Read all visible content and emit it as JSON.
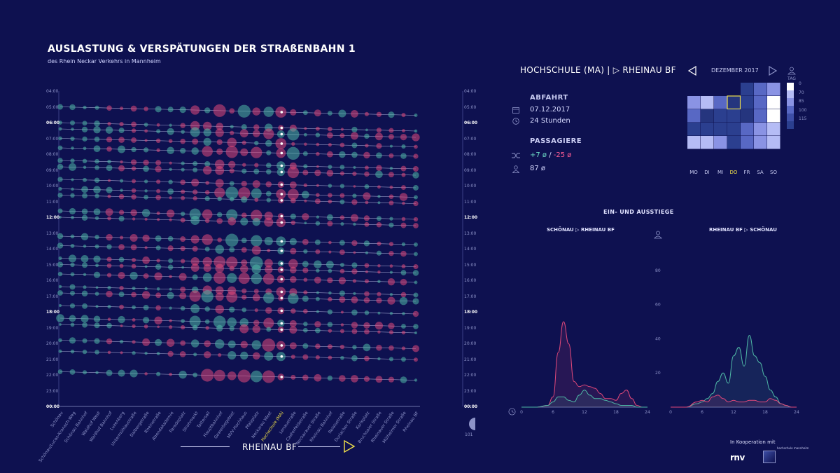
{
  "header": {
    "title": "AUSLASTUNG & VERSPÄTUNGEN DER STRAßENBAHN 1",
    "subtitle": "des Rhein Neckar Verkehrs in Mannheim"
  },
  "timeline": {
    "times": [
      "05:00",
      "06:00",
      "07:00",
      "08:00",
      "09:00",
      "10:00",
      "11:00",
      "12:00",
      "13:00",
      "14:00",
      "15:00",
      "16:00",
      "17:00",
      "18:00",
      "19:00",
      "20:00",
      "21:00",
      "22:00",
      "23:00",
      "00:00"
    ],
    "top_tick": "04:00",
    "bold_times": [
      "06:00",
      "12:00",
      "18:00",
      "00:00"
    ],
    "stops": [
      "Schönau",
      "Schönau/Lucas-Kranach-Weg",
      "Schönau Bahnhof",
      "Waldhof West",
      "Waldhof Bahnhof",
      "Luzenberg",
      "Untermühlaustraße",
      "Dalbergstraße",
      "Rheinstraße",
      "Abendakademie",
      "Paradeplatz",
      "Strohmarkt",
      "Tattersall",
      "Hauptbahnhof",
      "Gewerbegebiet",
      "MVV-Hochhaus",
      "Pfalzplatz",
      "Neckarau West",
      "Hochschule (MA)",
      "Lenaustraße",
      "Casterfeldstraße",
      "Neckarauer Straße",
      "Rheinau Bahnhof",
      "Relaisstraße",
      "Durlacher Straße",
      "Karlsplatz",
      "Bruchsaler Straße",
      "Rheinauer Straße",
      "Mülheimer Straße",
      "Rheinau BF"
    ],
    "highlight_stop": "Hochschule (MA)",
    "direction_label": "RHEINAU BF",
    "corner_value": "101",
    "colors": {
      "teal": "#4fb8a6",
      "pink": "#e0487a",
      "line": "#c9ccf2",
      "highlight": "#f0e04a"
    }
  },
  "route": {
    "title": "HOCHSCHULE (MA) | ▷ RHEINAU BF"
  },
  "abfahrt": {
    "heading": "ABFAHRT",
    "date": "07.12.2017",
    "duration": "24 Stunden"
  },
  "passagiere": {
    "heading": "PASSAGIERE",
    "plus": "+7 ø",
    "separator": "/",
    "minus": "-25 ø",
    "count": "87 ø"
  },
  "calendar": {
    "month": "DEZEMBER 2017",
    "days": [
      "MO",
      "DI",
      "MI",
      "DO",
      "FR",
      "SA",
      "SO"
    ],
    "today": "DO",
    "cells": [
      [
        null,
        null,
        null,
        null,
        "#2b3f8f",
        "#5868c4",
        "#8a93e4"
      ],
      [
        "#8a93e4",
        "#b5bcf5",
        "#5868c4",
        "#25357e",
        "#2b3f8f",
        "#5868c4",
        "#ffffff"
      ],
      [
        "#5868c4",
        "#25357e",
        "#2b3f8f",
        "#2b3f8f",
        "#25357e",
        "#5868c4",
        "#ffffff"
      ],
      [
        "#2b3f8f",
        "#2b3f8f",
        "#2b3f8f",
        "#2b3f8f",
        "#5868c4",
        "#8a93e4",
        "#b5bcf5"
      ],
      [
        "#b5bcf5",
        "#b5bcf5",
        "#8a93e4",
        "#2b3f8f",
        "#5868c4",
        "#8a93e4",
        "#b5bcf5"
      ]
    ],
    "selected": [
      1,
      3
    ],
    "legend_label": "TAG",
    "legend_values": [
      "0",
      "70",
      "85",
      "100",
      "115"
    ],
    "legend_colors": [
      "#ffffff",
      "#b5bcf5",
      "#8a93e4",
      "#5868c4",
      "#3d4ea6",
      "#2b3f8f"
    ]
  },
  "ein_aus": {
    "title": "EIN- UND AUSSTIEGE",
    "left_title": "SCHÖNAU ▷ RHEINAU BF",
    "right_title": "RHEINAU BF ▷ SCHÖNAU"
  },
  "chart_data": [
    {
      "type": "area",
      "title": "SCHÖNAU ▷ RHEINAU BF",
      "x_ticks": [
        0,
        6,
        12,
        18,
        24
      ],
      "ylim": [
        0,
        100
      ],
      "series": [
        {
          "color": "#e0487a",
          "x": [
            0,
            3,
            5,
            6,
            7,
            8,
            9,
            10,
            11,
            12,
            13,
            14,
            15,
            16,
            17,
            18,
            19,
            20,
            21,
            22,
            23,
            24
          ],
          "y": [
            0,
            0,
            1,
            6,
            32,
            50,
            37,
            15,
            12,
            13,
            12,
            11,
            8,
            5,
            5,
            4,
            8,
            10,
            5,
            1,
            0,
            0
          ]
        },
        {
          "color": "#4fb8a6",
          "x": [
            0,
            3,
            5,
            6,
            7,
            8,
            9,
            10,
            11,
            12,
            13,
            14,
            15,
            16,
            17,
            18,
            19,
            20,
            21,
            22,
            23,
            24
          ],
          "y": [
            0,
            0,
            1,
            3,
            6,
            6,
            4,
            3,
            7,
            10,
            7,
            5,
            5,
            4,
            3,
            2,
            1,
            1,
            1,
            0,
            0,
            0
          ]
        }
      ]
    },
    {
      "type": "area",
      "title": "RHEINAU BF ▷ SCHÖNAU",
      "x_ticks": [
        0,
        6,
        12,
        18,
        24
      ],
      "ylim": [
        0,
        100
      ],
      "y_ticks": [
        20,
        40,
        60,
        80
      ],
      "series": [
        {
          "color": "#4fb8a6",
          "x": [
            0,
            3,
            5,
            6,
            7,
            8,
            9,
            10,
            11,
            12,
            13,
            14,
            15,
            16,
            17,
            18,
            19,
            20,
            21,
            22,
            23,
            24
          ],
          "y": [
            0,
            0,
            2,
            3,
            5,
            8,
            15,
            20,
            14,
            30,
            35,
            24,
            42,
            30,
            26,
            18,
            10,
            6,
            2,
            1,
            0,
            0
          ]
        },
        {
          "color": "#e0487a",
          "x": [
            0,
            3,
            5,
            6,
            7,
            8,
            9,
            10,
            11,
            12,
            13,
            14,
            15,
            16,
            17,
            18,
            19,
            20,
            21,
            22,
            23,
            24
          ],
          "y": [
            0,
            0,
            3,
            4,
            3,
            6,
            7,
            5,
            3,
            4,
            3,
            3,
            4,
            4,
            3,
            3,
            5,
            4,
            2,
            1,
            0,
            0
          ]
        }
      ]
    }
  ],
  "cooperation": {
    "label": "In Kooperation mit",
    "rnv": "rnv",
    "hs": "hochschule mannheim"
  }
}
